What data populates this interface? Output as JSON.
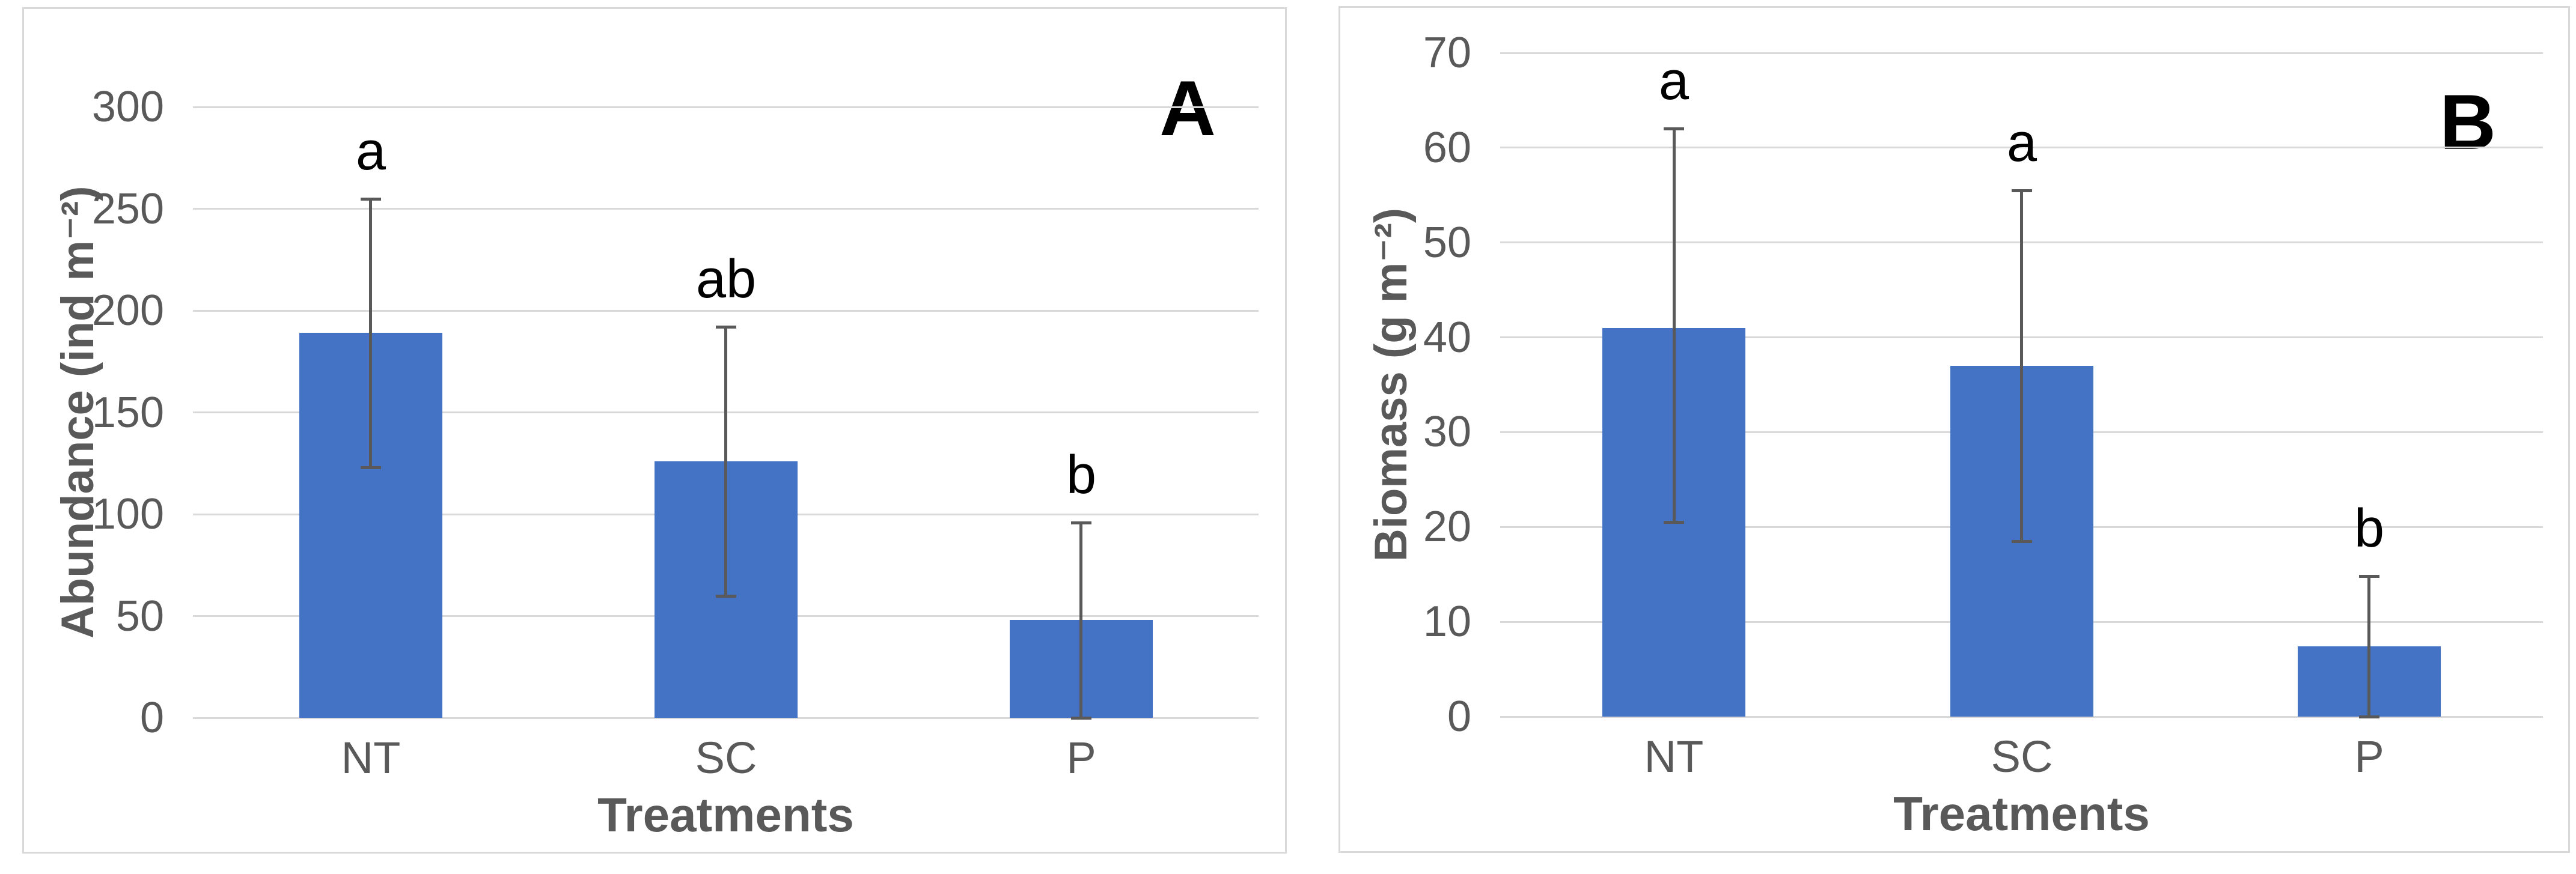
{
  "figure": {
    "panel_labels": [
      "A",
      "B"
    ]
  },
  "chart_data": [
    {
      "type": "bar",
      "panel_label": "A",
      "title": "",
      "xlabel": "Treatments",
      "ylabel": "Abundance (ind m⁻²)",
      "categories": [
        "NT",
        "SC",
        "P"
      ],
      "values": [
        189,
        126,
        48
      ],
      "error_low": [
        123,
        60,
        0
      ],
      "error_high": [
        255,
        192,
        96
      ],
      "sig_letters": [
        "a",
        "ab",
        "b"
      ],
      "ylim": [
        0,
        300
      ],
      "yticks": [
        0,
        50,
        100,
        150,
        200,
        250,
        300
      ],
      "grid": true,
      "legend": "none",
      "bar_color": "#4472C4",
      "error_color": "#595959",
      "grid_color": "#D9D9D9",
      "axis_text_color": "#595959",
      "letter_color": "#000000"
    },
    {
      "type": "bar",
      "panel_label": "B",
      "title": "",
      "xlabel": "Treatments",
      "ylabel": "Biomass (g m⁻²)",
      "categories": [
        "NT",
        "SC",
        "P"
      ],
      "values": [
        41,
        37,
        7.4
      ],
      "error_low": [
        20.5,
        18.5,
        0
      ],
      "error_high": [
        62,
        55.5,
        14.8
      ],
      "sig_letters": [
        "a",
        "a",
        "b"
      ],
      "ylim": [
        0,
        70
      ],
      "yticks": [
        0,
        10,
        20,
        30,
        40,
        50,
        60,
        70
      ],
      "grid": true,
      "legend": "none",
      "bar_color": "#4472C4",
      "error_color": "#595959",
      "grid_color": "#D9D9D9",
      "axis_text_color": "#595959",
      "letter_color": "#000000"
    }
  ]
}
